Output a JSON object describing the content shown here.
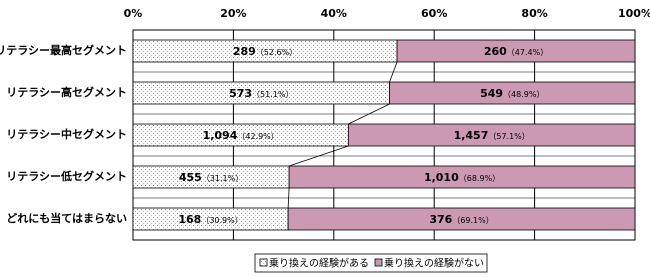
{
  "chart_data": {
    "type": "stacked-bar-100",
    "categories": [
      "リテラシー最高セグメント",
      "リテラシー高セグメント",
      "リテラシー中セグメント",
      "リテラシー低セグメント",
      "どれにも当てはまらない"
    ],
    "series": [
      {
        "name": "乗り換えの経験がある",
        "color": "#ffffff",
        "pattern": "dots",
        "values": [
          52.6,
          51.1,
          42.9,
          31.1,
          30.9
        ],
        "value_labels": [
          "（52.6%）",
          "（51.1%）",
          "（42.9%）",
          "（31.1%）",
          "（30.9%）"
        ],
        "counts": [
          289,
          573,
          {
            "value": 1094,
            "label": "1,094"
          },
          455,
          168
        ]
      },
      {
        "name": "乗り換えの経験がない",
        "color": "#cc99b2",
        "values": [
          47.4,
          48.9,
          57.1,
          68.9,
          69.1
        ],
        "value_labels": [
          "（47.4%）",
          "（48.9%）",
          "（57.1%）",
          "（68.9%）",
          "（69.1%）"
        ],
        "counts": [
          260,
          549,
          {
            "value": 1457,
            "label": "1,457"
          },
          {
            "value": 1010,
            "label": "1,010"
          },
          376
        ]
      }
    ],
    "xlim": [
      0,
      100
    ],
    "xticks": [
      {
        "value": 0,
        "label": "0%"
      },
      {
        "value": 20,
        "label": "20%"
      },
      {
        "value": 40,
        "label": "40%"
      },
      {
        "value": 60,
        "label": "60%"
      },
      {
        "value": 80,
        "label": "80%"
      },
      {
        "value": 100,
        "label": "100%"
      }
    ],
    "grid": true,
    "series_lines": true,
    "legend": "bottom"
  }
}
